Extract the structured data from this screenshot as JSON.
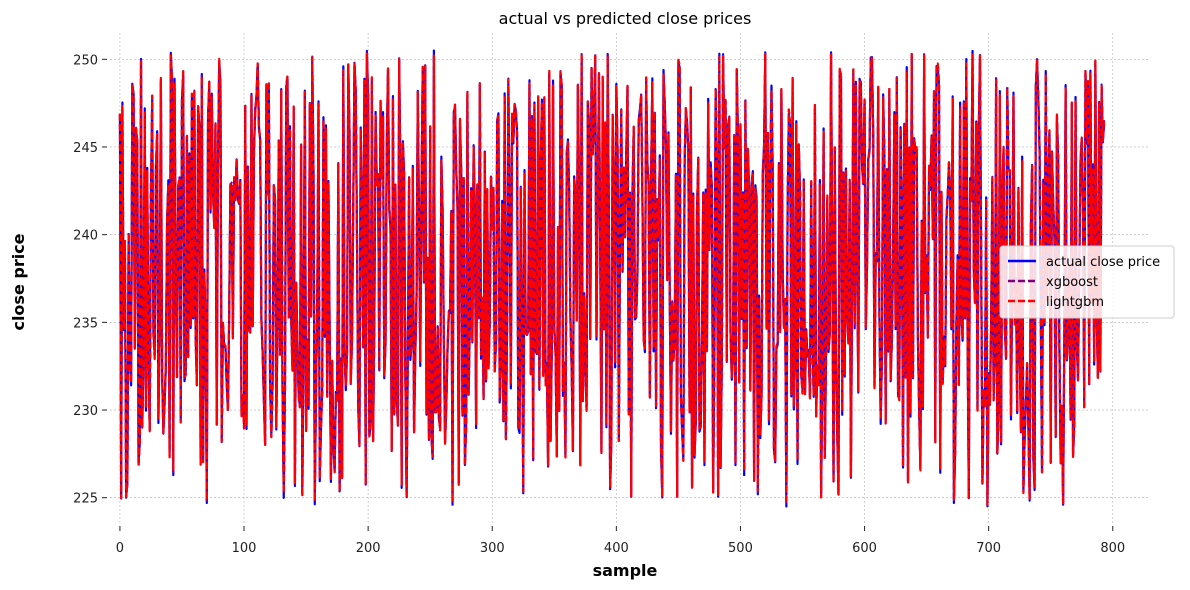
{
  "chart_data": {
    "type": "line",
    "title": "actual vs predicted close prices",
    "xlabel": "sample",
    "ylabel": "close price",
    "xlim": [
      -8,
      830
    ],
    "ylim": [
      223.5,
      251.5
    ],
    "xticks": [
      0,
      100,
      200,
      300,
      400,
      500,
      600,
      700,
      800
    ],
    "yticks": [
      225,
      230,
      235,
      240,
      245,
      250
    ],
    "grid": true,
    "legend_position": "center-right",
    "n_points": 794,
    "x_range": [
      0,
      793
    ],
    "series": [
      {
        "name": "actual close price",
        "style": "solid",
        "color": "#0000ff",
        "range": [
          224.5,
          250.5
        ]
      },
      {
        "name": "xgboost",
        "style": "dashed",
        "color": "#800080",
        "range": [
          224.6,
          250.3
        ]
      },
      {
        "name": "lightgbm",
        "style": "dashed",
        "color": "#ff0000",
        "range": [
          224.6,
          250.3
        ]
      }
    ],
    "sample_values": {
      "x": [
        0,
        5,
        10,
        20,
        30,
        40,
        50,
        60,
        70,
        80,
        90,
        100,
        110,
        120,
        130,
        140,
        150,
        155,
        160,
        170,
        180,
        190,
        200,
        220,
        240,
        250,
        253,
        260,
        270,
        290,
        300,
        320,
        340,
        360,
        380,
        400,
        420,
        440,
        460,
        480,
        500,
        520,
        537,
        540,
        560,
        580,
        600,
        620,
        640,
        660,
        680,
        700,
        720,
        740,
        760,
        780,
        793
      ],
      "actual": [
        246.8,
        225.0,
        248.6,
        247.2,
        245.9,
        227.6,
        247.7,
        248.1,
        224.7,
        249.8,
        242.8,
        229.2,
        247.8,
        248.5,
        248.3,
        247.2,
        229.0,
        250.1,
        247.6,
        225.9,
        249.6,
        248.2,
        247.9,
        247.9,
        248.2,
        246.0,
        250.5,
        241.3,
        247.3,
        248.5,
        240.5,
        245.9,
        247.7,
        244.6,
        249.5,
        248.6,
        247.9,
        245.1,
        248.4,
        248.3,
        246.3,
        250.4,
        224.5,
        246.3,
        247.2,
        249.3,
        247.7,
        248.2,
        245.5,
        248.5,
        247.6,
        232.1,
        248.1,
        247.8,
        224.6,
        248.6,
        246.3
      ]
    }
  }
}
